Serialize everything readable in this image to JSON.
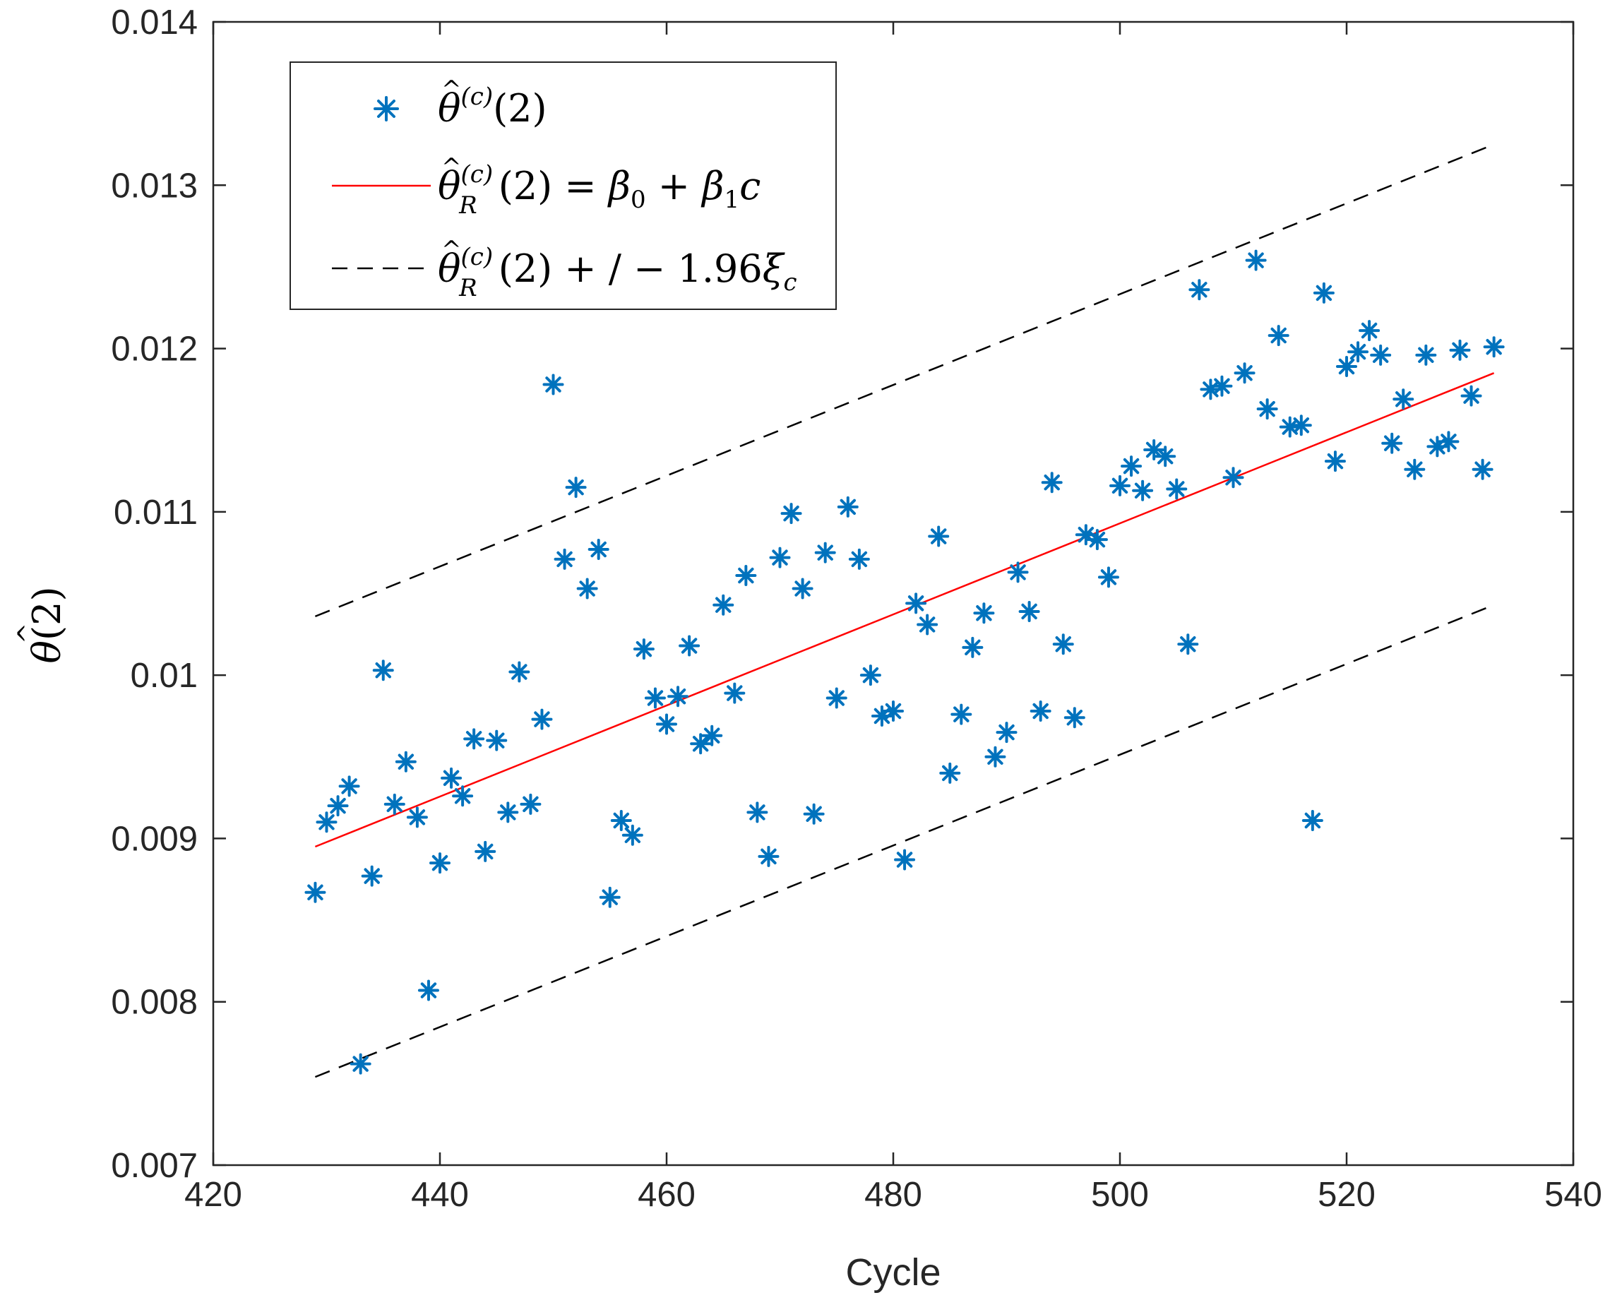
{
  "chart_data": {
    "type": "scatter",
    "xlabel": "Cycle",
    "ylabel": "θ̂(2)",
    "xlim": [
      420,
      540
    ],
    "ylim": [
      0.007,
      0.014
    ],
    "x_ticks": [
      420,
      440,
      460,
      480,
      500,
      520,
      540
    ],
    "x_tick_labels": [
      "420",
      "440",
      "460",
      "480",
      "500",
      "520",
      "540"
    ],
    "y_ticks": [
      0.007,
      0.008,
      0.009,
      0.01,
      0.011,
      0.012,
      0.013,
      0.014
    ],
    "y_tick_labels": [
      "0.007",
      "0.008",
      "0.009",
      "0.01",
      "0.011",
      "0.012",
      "0.013",
      "0.014"
    ],
    "grid": false,
    "legend_position": "top-left",
    "series": [
      {
        "name": "scatter",
        "label": "θ̂(c)(2)",
        "marker": "asterisk",
        "color": "#0072BD",
        "x": [
          429,
          430,
          431,
          432,
          433,
          434,
          435,
          436,
          437,
          438,
          439,
          440,
          441,
          442,
          443,
          444,
          445,
          446,
          447,
          448,
          449,
          450,
          451,
          452,
          453,
          454,
          455,
          456,
          457,
          458,
          459,
          460,
          461,
          462,
          463,
          464,
          465,
          466,
          467,
          468,
          469,
          470,
          471,
          472,
          473,
          474,
          475,
          476,
          477,
          478,
          479,
          480,
          481,
          482,
          483,
          484,
          485,
          486,
          487,
          488,
          489,
          490,
          491,
          492,
          493,
          494,
          495,
          496,
          497,
          498,
          499,
          500,
          501,
          502,
          503,
          504,
          505,
          506,
          507,
          508,
          509,
          510,
          511,
          512,
          513,
          514,
          515,
          516,
          517,
          518,
          519,
          520,
          521,
          522,
          523,
          524,
          525,
          526,
          527,
          528,
          529,
          530,
          531,
          532,
          533
        ],
        "y": [
          0.00867,
          0.0091,
          0.0092,
          0.00932,
          0.00762,
          0.00877,
          0.01003,
          0.00921,
          0.00947,
          0.00913,
          0.00807,
          0.00885,
          0.00937,
          0.00926,
          0.00961,
          0.00892,
          0.0096,
          0.00916,
          0.01002,
          0.00921,
          0.00973,
          0.01178,
          0.01071,
          0.01115,
          0.01053,
          0.01077,
          0.00864,
          0.00911,
          0.00902,
          0.01016,
          0.00986,
          0.0097,
          0.00987,
          0.01018,
          0.00958,
          0.00963,
          0.01043,
          0.00989,
          0.01061,
          0.00916,
          0.00889,
          0.01072,
          0.01099,
          0.01053,
          0.00915,
          0.01075,
          0.00986,
          0.01103,
          0.01071,
          0.01,
          0.00975,
          0.00978,
          0.00887,
          0.01044,
          0.01031,
          0.01085,
          0.0094,
          0.00976,
          0.01017,
          0.01038,
          0.0095,
          0.00965,
          0.01063,
          0.01039,
          0.00978,
          0.01118,
          0.01019,
          0.00974,
          0.01086,
          0.01083,
          0.0106,
          0.01116,
          0.01128,
          0.01113,
          0.01138,
          0.01134,
          0.01114,
          0.01019,
          0.01236,
          0.01175,
          0.01177,
          0.01121,
          0.01185,
          0.01254,
          0.01163,
          0.01208,
          0.01152,
          0.01153,
          0.00911,
          0.01234,
          0.01131,
          0.01189,
          0.01198,
          0.01211,
          0.01196,
          0.01142,
          0.01169,
          0.01126,
          0.01196,
          0.0114,
          0.01143,
          0.01199,
          0.01171,
          0.01126,
          0.01201
        ]
      },
      {
        "name": "regression",
        "label": "θ̂R(c)(2) = β̂0 + β̂1c",
        "style": "solid",
        "color": "#FF0000",
        "x": [
          429,
          533
        ],
        "y": [
          0.00895,
          0.01185
        ]
      },
      {
        "name": "upper-bound",
        "label": "θ̂R(c)(2) +/− 1.96ξ̂c",
        "style": "dashed",
        "color": "#000000",
        "x": [
          429,
          533
        ],
        "y": [
          0.01036,
          0.01325
        ]
      },
      {
        "name": "lower-bound",
        "label": "",
        "style": "dashed",
        "color": "#000000",
        "x": [
          429,
          533
        ],
        "y": [
          0.00754,
          0.01043
        ]
      }
    ]
  }
}
